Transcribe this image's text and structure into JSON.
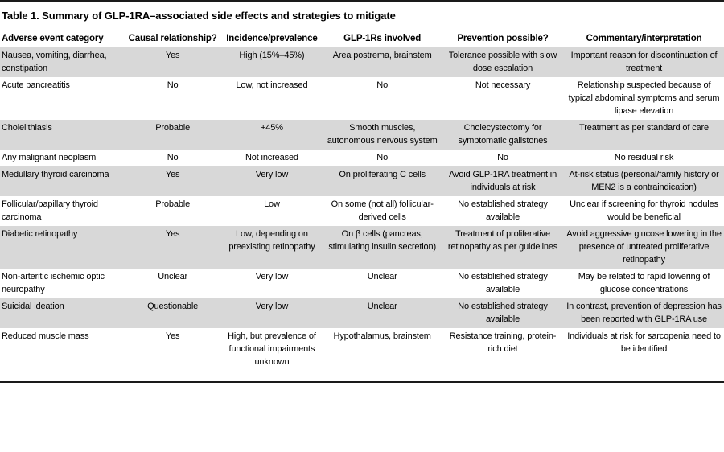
{
  "title": "Table 1. Summary of GLP-1RA–associated side effects and strategies to mitigate",
  "colors": {
    "row_shade": "#d8d8d8",
    "rule": "#1a1a1a",
    "text": "#000000",
    "background": "#ffffff"
  },
  "table": {
    "columns": [
      "Adverse event category",
      "Causal relationship?",
      "Incidence/prevalence",
      "GLP-1Rs involved",
      "Prevention possible?",
      "Commentary/interpretation"
    ],
    "rows": [
      {
        "shaded": true,
        "cells": [
          "Nausea, vomiting, diarrhea, constipation",
          "Yes",
          "High (15%–45%)",
          "Area postrema, brainstem",
          "Tolerance possible with slow dose escalation",
          "Important reason for discontinuation of treatment"
        ]
      },
      {
        "shaded": false,
        "cells": [
          "Acute pancreatitis",
          "No",
          "Low, not increased",
          "No",
          "Not necessary",
          "Relationship suspected because of typical abdominal symptoms and serum lipase elevation"
        ]
      },
      {
        "shaded": true,
        "cells": [
          "Cholelithiasis",
          "Probable",
          "+45%",
          "Smooth muscles, autonomous nervous system",
          "Cholecystectomy for symptomatic gallstones",
          "Treatment as per standard of care"
        ]
      },
      {
        "shaded": false,
        "cells": [
          "Any malignant neoplasm",
          "No",
          "Not increased",
          "No",
          "No",
          "No residual risk"
        ]
      },
      {
        "shaded": true,
        "cells": [
          "Medullary thyroid carcinoma",
          "Yes",
          "Very low",
          "On proliferating C cells",
          "Avoid GLP-1RA treatment in individuals at risk",
          "At-risk status (personal/family history or MEN2 is a contraindication)"
        ]
      },
      {
        "shaded": false,
        "cells": [
          "Follicular/papillary thyroid carcinoma",
          "Probable",
          "Low",
          "On some (not all) follicular-derived cells",
          "No established strategy available",
          "Unclear if screening for thyroid nodules would be beneficial"
        ]
      },
      {
        "shaded": true,
        "cells": [
          "Diabetic retinopathy",
          "Yes",
          "Low, depending on preexisting retinopathy",
          "On β cells (pancreas, stimulating insulin secretion)",
          "Treatment of proliferative retinopathy as per guidelines",
          "Avoid aggressive glucose lowering in the presence of untreated proliferative retinopathy"
        ]
      },
      {
        "shaded": false,
        "cells": [
          "Non-arteritic ischemic optic neuropathy",
          "Unclear",
          "Very low",
          "Unclear",
          "No established strategy available",
          "May be related to rapid lowering of glucose concentrations"
        ]
      },
      {
        "shaded": true,
        "cells": [
          "Suicidal ideation",
          "Questionable",
          "Very low",
          "Unclear",
          "No established strategy available",
          "In contrast, prevention of depression has been reported with GLP-1RA use"
        ]
      },
      {
        "shaded": false,
        "cells": [
          "Reduced muscle mass",
          "Yes",
          "High, but prevalence of functional impairments unknown",
          "Hypothalamus, brainstem",
          "Resistance training, protein-rich diet",
          "Individuals at risk for sarcopenia need to be identified"
        ]
      }
    ]
  }
}
